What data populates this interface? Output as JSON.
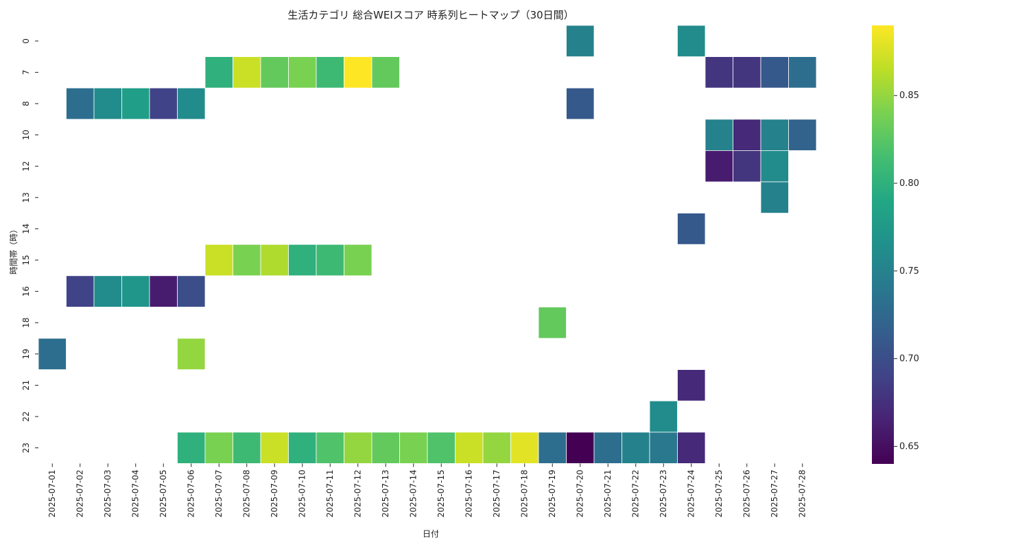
{
  "chart_data": {
    "type": "heatmap",
    "title": "生活カテゴリ 総合WEIスコア 時系列ヒートマップ（30日間）",
    "xlabel": "日付",
    "ylabel": "時間帯（時）",
    "x": [
      "2025-07-01",
      "2025-07-02",
      "2025-07-03",
      "2025-07-04",
      "2025-07-05",
      "2025-07-06",
      "2025-07-07",
      "2025-07-08",
      "2025-07-09",
      "2025-07-10",
      "2025-07-11",
      "2025-07-12",
      "2025-07-13",
      "2025-07-14",
      "2025-07-15",
      "2025-07-16",
      "2025-07-17",
      "2025-07-18",
      "2025-07-19",
      "2025-07-20",
      "2025-07-21",
      "2025-07-22",
      "2025-07-23",
      "2025-07-24",
      "2025-07-25",
      "2025-07-26",
      "2025-07-27",
      "2025-07-28"
    ],
    "y": [
      "0",
      "7",
      "8",
      "10",
      "12",
      "13",
      "14",
      "15",
      "16",
      "18",
      "19",
      "21",
      "22",
      "23"
    ],
    "colormap": "viridis",
    "vmin": 0.64,
    "vmax": 0.89,
    "colorbar_ticks": [
      "0.65",
      "0.70",
      "0.75",
      "0.80",
      "0.85"
    ],
    "grid": false,
    "cells": [
      {
        "x": "2025-07-20",
        "y": "0",
        "value": 0.75
      },
      {
        "x": "2025-07-24",
        "y": "0",
        "value": 0.76
      },
      {
        "x": "2025-07-07",
        "y": "7",
        "value": 0.8
      },
      {
        "x": "2025-07-08",
        "y": "7",
        "value": 0.87
      },
      {
        "x": "2025-07-09",
        "y": "7",
        "value": 0.83
      },
      {
        "x": "2025-07-10",
        "y": "7",
        "value": 0.84
      },
      {
        "x": "2025-07-11",
        "y": "7",
        "value": 0.81
      },
      {
        "x": "2025-07-12",
        "y": "7",
        "value": 0.89
      },
      {
        "x": "2025-07-13",
        "y": "7",
        "value": 0.83
      },
      {
        "x": "2025-07-25",
        "y": "7",
        "value": 0.68
      },
      {
        "x": "2025-07-26",
        "y": "7",
        "value": 0.68
      },
      {
        "x": "2025-07-27",
        "y": "7",
        "value": 0.71
      },
      {
        "x": "2025-07-28",
        "y": "7",
        "value": 0.73
      },
      {
        "x": "2025-07-02",
        "y": "8",
        "value": 0.73
      },
      {
        "x": "2025-07-03",
        "y": "8",
        "value": 0.76
      },
      {
        "x": "2025-07-04",
        "y": "8",
        "value": 0.78
      },
      {
        "x": "2025-07-05",
        "y": "8",
        "value": 0.69
      },
      {
        "x": "2025-07-06",
        "y": "8",
        "value": 0.76
      },
      {
        "x": "2025-07-20",
        "y": "8",
        "value": 0.71
      },
      {
        "x": "2025-07-25",
        "y": "10",
        "value": 0.75
      },
      {
        "x": "2025-07-26",
        "y": "10",
        "value": 0.67
      },
      {
        "x": "2025-07-27",
        "y": "10",
        "value": 0.75
      },
      {
        "x": "2025-07-28",
        "y": "10",
        "value": 0.72
      },
      {
        "x": "2025-07-25",
        "y": "12",
        "value": 0.66
      },
      {
        "x": "2025-07-26",
        "y": "12",
        "value": 0.68
      },
      {
        "x": "2025-07-27",
        "y": "12",
        "value": 0.76
      },
      {
        "x": "2025-07-27",
        "y": "13",
        "value": 0.75
      },
      {
        "x": "2025-07-24",
        "y": "14",
        "value": 0.71
      },
      {
        "x": "2025-07-07",
        "y": "15",
        "value": 0.87
      },
      {
        "x": "2025-07-08",
        "y": "15",
        "value": 0.84
      },
      {
        "x": "2025-07-09",
        "y": "15",
        "value": 0.86
      },
      {
        "x": "2025-07-10",
        "y": "15",
        "value": 0.8
      },
      {
        "x": "2025-07-11",
        "y": "15",
        "value": 0.81
      },
      {
        "x": "2025-07-12",
        "y": "15",
        "value": 0.84
      },
      {
        "x": "2025-07-02",
        "y": "16",
        "value": 0.69
      },
      {
        "x": "2025-07-03",
        "y": "16",
        "value": 0.76
      },
      {
        "x": "2025-07-04",
        "y": "16",
        "value": 0.77
      },
      {
        "x": "2025-07-05",
        "y": "16",
        "value": 0.66
      },
      {
        "x": "2025-07-06",
        "y": "16",
        "value": 0.7
      },
      {
        "x": "2025-07-19",
        "y": "18",
        "value": 0.83
      },
      {
        "x": "2025-07-01",
        "y": "19",
        "value": 0.73
      },
      {
        "x": "2025-07-06",
        "y": "19",
        "value": 0.85
      },
      {
        "x": "2025-07-24",
        "y": "21",
        "value": 0.67
      },
      {
        "x": "2025-07-23",
        "y": "22",
        "value": 0.76
      },
      {
        "x": "2025-07-06",
        "y": "23",
        "value": 0.8
      },
      {
        "x": "2025-07-07",
        "y": "23",
        "value": 0.84
      },
      {
        "x": "2025-07-08",
        "y": "23",
        "value": 0.81
      },
      {
        "x": "2025-07-09",
        "y": "23",
        "value": 0.87
      },
      {
        "x": "2025-07-10",
        "y": "23",
        "value": 0.8
      },
      {
        "x": "2025-07-11",
        "y": "23",
        "value": 0.82
      },
      {
        "x": "2025-07-12",
        "y": "23",
        "value": 0.85
      },
      {
        "x": "2025-07-13",
        "y": "23",
        "value": 0.83
      },
      {
        "x": "2025-07-14",
        "y": "23",
        "value": 0.84
      },
      {
        "x": "2025-07-15",
        "y": "23",
        "value": 0.82
      },
      {
        "x": "2025-07-16",
        "y": "23",
        "value": 0.87
      },
      {
        "x": "2025-07-17",
        "y": "23",
        "value": 0.85
      },
      {
        "x": "2025-07-18",
        "y": "23",
        "value": 0.88
      },
      {
        "x": "2025-07-19",
        "y": "23",
        "value": 0.73
      },
      {
        "x": "2025-07-20",
        "y": "23",
        "value": 0.64
      },
      {
        "x": "2025-07-21",
        "y": "23",
        "value": 0.73
      },
      {
        "x": "2025-07-22",
        "y": "23",
        "value": 0.75
      },
      {
        "x": "2025-07-23",
        "y": "23",
        "value": 0.74
      },
      {
        "x": "2025-07-24",
        "y": "23",
        "value": 0.67
      }
    ]
  }
}
